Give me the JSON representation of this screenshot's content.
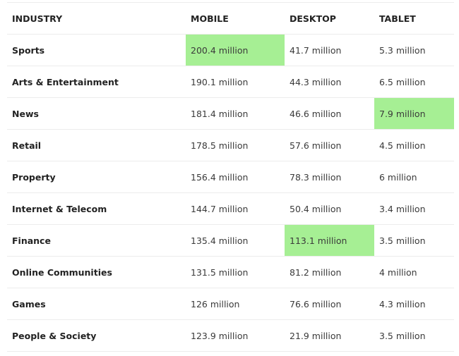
{
  "headers": [
    "INDUSTRY",
    "MOBILE",
    "DESKTOP",
    "TABLET"
  ],
  "highlight_color": "#a6ef94",
  "rows": [
    {
      "industry": "Sports",
      "mobile": "200.4 million",
      "desktop": "41.7 million",
      "tablet": "5.3 million",
      "highlight": "mobile"
    },
    {
      "industry": "Arts & Entertainment",
      "mobile": "190.1 million",
      "desktop": "44.3 million",
      "tablet": "6.5 million",
      "highlight": ""
    },
    {
      "industry": "News",
      "mobile": "181.4 million",
      "desktop": "46.6 million",
      "tablet": "7.9 million",
      "highlight": "tablet"
    },
    {
      "industry": "Retail",
      "mobile": "178.5 million",
      "desktop": "57.6 million",
      "tablet": "4.5 million",
      "highlight": ""
    },
    {
      "industry": "Property",
      "mobile": "156.4 million",
      "desktop": "78.3 million",
      "tablet": "6 million",
      "highlight": ""
    },
    {
      "industry": "Internet & Telecom",
      "mobile": "144.7 million",
      "desktop": "50.4 million",
      "tablet": "3.4 million",
      "highlight": ""
    },
    {
      "industry": "Finance",
      "mobile": "135.4 million",
      "desktop": "113.1 million",
      "tablet": "3.5 million",
      "highlight": "desktop"
    },
    {
      "industry": "Online Communities",
      "mobile": "131.5 million",
      "desktop": "81.2 million",
      "tablet": "4 million",
      "highlight": ""
    },
    {
      "industry": "Games",
      "mobile": "126 million",
      "desktop": "76.6 million",
      "tablet": "4.3 million",
      "highlight": ""
    },
    {
      "industry": "People & Society",
      "mobile": "123.9 million",
      "desktop": "21.9 million",
      "tablet": "3.5 million",
      "highlight": ""
    }
  ]
}
